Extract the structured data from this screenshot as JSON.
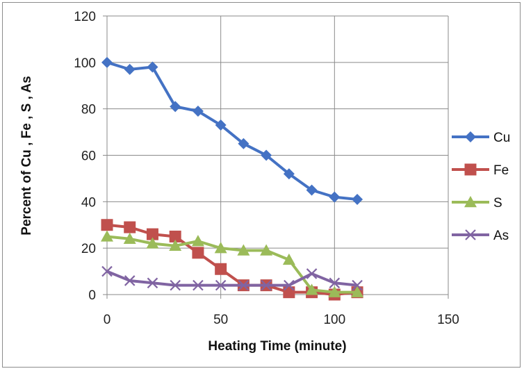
{
  "chart_data": {
    "type": "scatter",
    "title": "",
    "xlabel": "Heating Time (minute)",
    "ylabel": "Percent of Cu , Fe , S , As",
    "xlim": [
      0,
      150
    ],
    "ylim": [
      0,
      120
    ],
    "xticks": [
      0,
      50,
      100,
      150
    ],
    "yticks": [
      0,
      20,
      40,
      60,
      80,
      100,
      120
    ],
    "grid": true,
    "legend_position": "right",
    "series": [
      {
        "name": "Cu",
        "color": "#4472C4",
        "marker": "diamond",
        "x": [
          0,
          10,
          20,
          30,
          40,
          50,
          60,
          70,
          80,
          90,
          100,
          110
        ],
        "y": [
          100,
          97,
          98,
          81,
          79,
          73,
          65,
          60,
          52,
          45,
          42,
          41
        ]
      },
      {
        "name": "Fe",
        "color": "#C0504D",
        "marker": "square",
        "x": [
          0,
          10,
          20,
          30,
          40,
          50,
          60,
          70,
          80,
          90,
          100,
          110
        ],
        "y": [
          30,
          29,
          26,
          25,
          18,
          11,
          4,
          4,
          1,
          1,
          0,
          1
        ]
      },
      {
        "name": "S",
        "color": "#9BBB59",
        "marker": "triangle",
        "x": [
          0,
          10,
          20,
          30,
          40,
          50,
          60,
          70,
          80,
          90,
          100,
          110
        ],
        "y": [
          25,
          24,
          22,
          21,
          23,
          20,
          19,
          19,
          15,
          2,
          1,
          1
        ]
      },
      {
        "name": "As",
        "color": "#8064A2",
        "marker": "x",
        "x": [
          0,
          10,
          20,
          30,
          40,
          50,
          60,
          70,
          80,
          90,
          100,
          110
        ],
        "y": [
          10,
          6,
          5,
          4,
          4,
          4,
          4,
          4,
          4,
          9,
          5,
          4
        ]
      }
    ]
  }
}
